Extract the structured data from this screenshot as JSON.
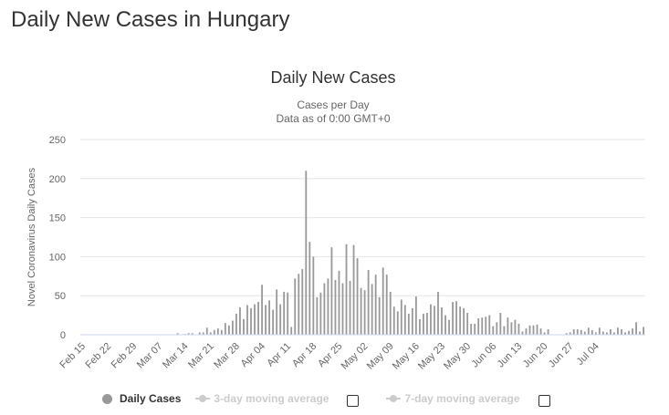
{
  "page": {
    "title": "Daily New Cases in Hungary"
  },
  "chart_data": {
    "type": "bar",
    "title": "Daily New Cases",
    "subtitle_line1": "Cases per Day",
    "subtitle_line2": "Data as of 0:00 GMT+0",
    "xlabel": "",
    "ylabel": "Novel Coronavirus Daily Cases",
    "ylim": [
      0,
      250
    ],
    "yticks": [
      0,
      50,
      100,
      150,
      200,
      250
    ],
    "grid": true,
    "bar_color": "#999999",
    "start_date": "Feb 15",
    "x_tick_labels": [
      "Feb 15",
      "Feb 22",
      "Feb 29",
      "Mar 07",
      "Mar 14",
      "Mar 21",
      "Mar 28",
      "Apr 04",
      "Apr 11",
      "Apr 18",
      "Apr 25",
      "May 02",
      "May 09",
      "May 16",
      "May 23",
      "May 30",
      "Jun 06",
      "Jun 13",
      "Jun 20",
      "Jun 27",
      "Jul 04"
    ],
    "x_tick_every_days": 7,
    "values": [
      0,
      0,
      0,
      0,
      0,
      0,
      0,
      0,
      0,
      0,
      0,
      0,
      0,
      0,
      0,
      0,
      0,
      0,
      0,
      0,
      0,
      0,
      0,
      0,
      0,
      0,
      2,
      0,
      1,
      2,
      2,
      0,
      3,
      3,
      9,
      3,
      6,
      8,
      6,
      15,
      12,
      18,
      27,
      35,
      20,
      38,
      34,
      39,
      42,
      64,
      38,
      44,
      32,
      58,
      39,
      55,
      54,
      10,
      72,
      78,
      84,
      210,
      119,
      100,
      48,
      54,
      66,
      72,
      112,
      70,
      82,
      66,
      116,
      69,
      115,
      98,
      60,
      57,
      83,
      65,
      77,
      48,
      86,
      77,
      55,
      36,
      30,
      45,
      38,
      27,
      34,
      49,
      20,
      27,
      28,
      39,
      37,
      55,
      35,
      25,
      19,
      42,
      43,
      36,
      34,
      28,
      14,
      14,
      21,
      22,
      23,
      25,
      11,
      16,
      28,
      11,
      22,
      16,
      19,
      14,
      4,
      8,
      12,
      12,
      13,
      8,
      3,
      7,
      0,
      0,
      0,
      0,
      2,
      3,
      7,
      7,
      6,
      4,
      9,
      6,
      3,
      9,
      4,
      3,
      7,
      3,
      9,
      7,
      3,
      5,
      8,
      16,
      4,
      10
    ]
  },
  "legend": {
    "items": [
      {
        "label": "Daily Cases"
      },
      {
        "label": "3-day moving average"
      },
      {
        "label": "7-day moving average"
      }
    ]
  },
  "colors": {
    "bars": "#999999",
    "grid": "#e6e6e6",
    "legend_muted": "#cccccc"
  }
}
